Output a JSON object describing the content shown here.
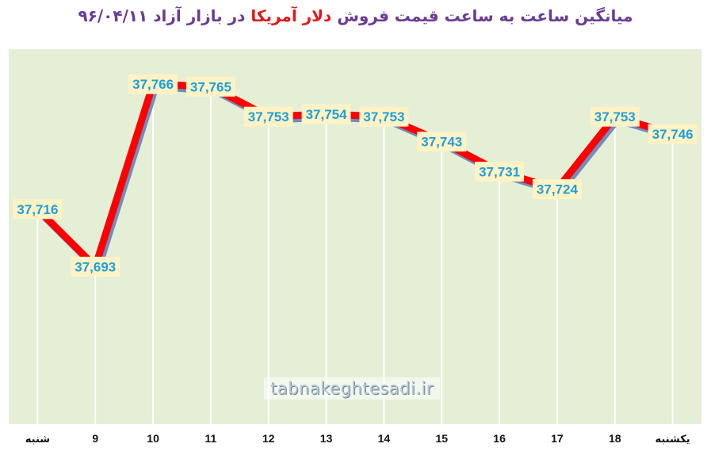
{
  "title": {
    "part1": "میانگین ساعت به ساعت قیمت فروش",
    "highlight": "دلار آمریکا",
    "part2": "در بازار آزاد ۹۶/۰۴/۱۱"
  },
  "watermark": "tabnakeghtesadi.ir",
  "colors": {
    "title": "#6b3a93",
    "title_highlight": "#e0181b",
    "line": "#ff0000",
    "line_shadow": "#5a7bb8",
    "plot_background": "#e4efd6",
    "data_label_text": "#1e9fdc",
    "data_label_background": "#fff2c4"
  },
  "chart_data": {
    "type": "line",
    "categories": [
      "شنبه",
      "9",
      "10",
      "11",
      "12",
      "13",
      "14",
      "15",
      "16",
      "17",
      "18",
      "یکشنبه"
    ],
    "values": [
      37716,
      37693,
      37766,
      37765,
      37753,
      37754,
      37753,
      37743,
      37731,
      37724,
      37753,
      37746
    ],
    "value_labels": [
      "37,716",
      "37,693",
      "37,766",
      "37,765",
      "37,753",
      "37,754",
      "37,753",
      "37,743",
      "37,731",
      "37,724",
      "37,753",
      "37,746"
    ],
    "ylim": [
      37630,
      37780
    ],
    "grid": "vertical drop lines",
    "legend": "none"
  }
}
